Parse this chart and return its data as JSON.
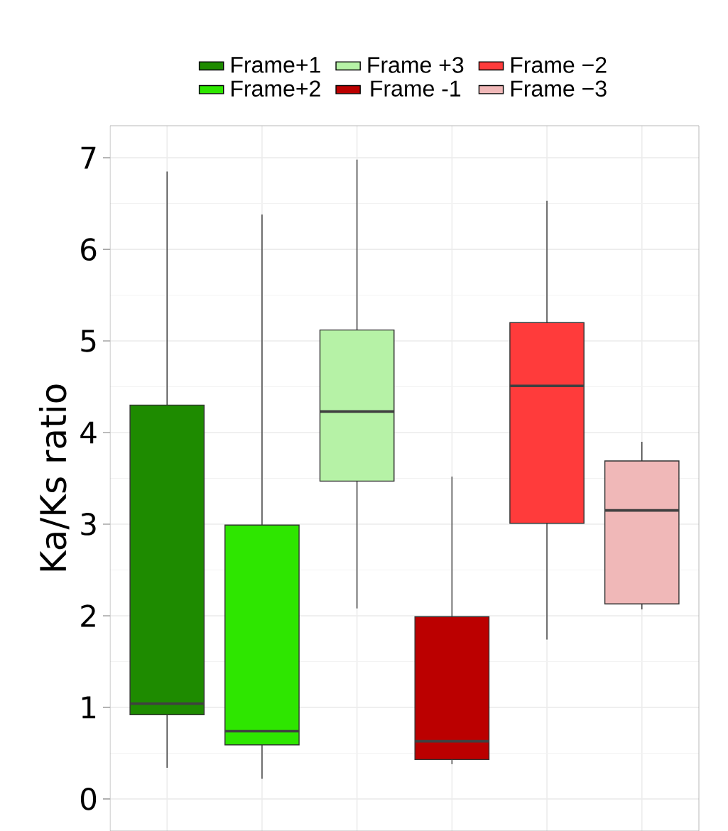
{
  "chart_data": {
    "type": "box",
    "ylabel": "Ka/Ks ratio",
    "categories": [
      null,
      null,
      null,
      null,
      null,
      null
    ],
    "ylim": [
      -0.35,
      7.35
    ],
    "yticks": [
      0,
      1,
      2,
      3,
      4,
      5,
      6,
      7
    ],
    "grid": true,
    "legend": "top",
    "series": [
      {
        "name": "Frame+1",
        "color": "#1e8b00",
        "boxes": [
          {
            "low": 0.34,
            "q1": 0.92,
            "median": 1.04,
            "q3": 4.3,
            "high": 6.85
          },
          null,
          null,
          null,
          null,
          null
        ]
      },
      {
        "name": "Frame+2",
        "color": "#2ee600",
        "boxes": [
          null,
          {
            "low": 0.22,
            "q1": 0.59,
            "median": 0.74,
            "q3": 2.99,
            "high": 6.38
          },
          null,
          null,
          null,
          null
        ]
      },
      {
        "name": "Frame +3",
        "color": "#b6f2a6",
        "boxes": [
          null,
          null,
          {
            "low": 2.08,
            "q1": 3.47,
            "median": 4.23,
            "q3": 5.12,
            "high": 6.98
          },
          null,
          null,
          null
        ]
      },
      {
        "name": "Frame -1",
        "color": "#bb0000",
        "boxes": [
          null,
          null,
          null,
          {
            "low": 0.38,
            "q1": 0.43,
            "median": 0.63,
            "q3": 1.99,
            "high": 3.52
          },
          null,
          null
        ]
      },
      {
        "name": "Frame −2",
        "color": "#ff3b3b",
        "boxes": [
          null,
          null,
          null,
          null,
          {
            "low": 1.74,
            "q1": 3.01,
            "median": 4.51,
            "q3": 5.2,
            "high": 6.53
          },
          null
        ]
      },
      {
        "name": "Frame −3",
        "color": "#f0b8b8",
        "boxes": [
          null,
          null,
          null,
          null,
          null,
          {
            "low": 2.07,
            "q1": 2.13,
            "median": 3.15,
            "q3": 3.69,
            "high": 3.9
          }
        ]
      }
    ]
  }
}
